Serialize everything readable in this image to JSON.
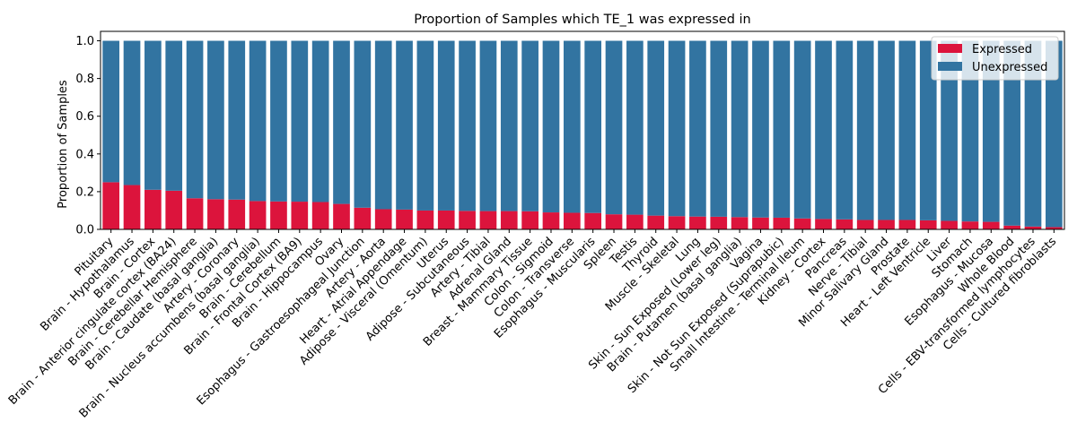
{
  "chart_data": {
    "type": "bar",
    "stacked": true,
    "title": "Proportion of Samples which TE_1 was expressed in",
    "xlabel": "",
    "ylabel": "Proportion of Samples",
    "ylim": [
      0,
      1.05
    ],
    "yticks": [
      "0.0",
      "0.2",
      "0.4",
      "0.6",
      "0.8",
      "1.0"
    ],
    "legend_position": "top-right",
    "categories": [
      "Pituitary",
      "Brain - Hypothalamus",
      "Brain - Cortex",
      "Brain - Anterior cingulate cortex (BA24)",
      "Brain - Cerebellar Hemisphere",
      "Brain - Caudate (basal ganglia)",
      "Artery - Coronary",
      "Brain - Nucleus accumbens (basal ganglia)",
      "Brain - Cerebellum",
      "Brain - Frontal Cortex (BA9)",
      "Brain - Hippocampus",
      "Ovary",
      "Esophagus - Gastroesophageal Junction",
      "Artery - Aorta",
      "Heart - Atrial Appendage",
      "Adipose - Visceral (Omentum)",
      "Uterus",
      "Adipose - Subcutaneous",
      "Artery - Tibial",
      "Adrenal Gland",
      "Breast - Mammary Tissue",
      "Colon - Sigmoid",
      "Colon - Transverse",
      "Esophagus - Muscularis",
      "Spleen",
      "Testis",
      "Thyroid",
      "Muscle - Skeletal",
      "Lung",
      "Skin - Sun Exposed (Lower leg)",
      "Brain - Putamen (basal ganglia)",
      "Vagina",
      "Skin - Not Sun Exposed (Suprapubic)",
      "Small Intestine - Terminal Ileum",
      "Kidney - Cortex",
      "Pancreas",
      "Nerve - Tibial",
      "Minor Salivary Gland",
      "Prostate",
      "Heart - Left Ventricle",
      "Liver",
      "Stomach",
      "Esophagus - Mucosa",
      "Whole Blood",
      "Cells - EBV-transformed lymphocytes",
      "Cells - Cultured fibroblasts"
    ],
    "series": [
      {
        "name": "Expressed",
        "color": "#dc143c",
        "values": [
          0.25,
          0.235,
          0.21,
          0.205,
          0.165,
          0.16,
          0.158,
          0.15,
          0.148,
          0.147,
          0.145,
          0.135,
          0.115,
          0.107,
          0.105,
          0.1,
          0.1,
          0.098,
          0.097,
          0.097,
          0.096,
          0.09,
          0.088,
          0.087,
          0.08,
          0.078,
          0.073,
          0.07,
          0.068,
          0.067,
          0.065,
          0.063,
          0.062,
          0.058,
          0.055,
          0.053,
          0.05,
          0.05,
          0.05,
          0.048,
          0.045,
          0.042,
          0.04,
          0.02,
          0.015,
          0.012
        ]
      },
      {
        "name": "Unexpressed",
        "color": "#3274a1",
        "values": [
          0.75,
          0.765,
          0.79,
          0.795,
          0.835,
          0.84,
          0.842,
          0.85,
          0.852,
          0.853,
          0.855,
          0.865,
          0.885,
          0.893,
          0.895,
          0.9,
          0.9,
          0.902,
          0.903,
          0.903,
          0.904,
          0.91,
          0.912,
          0.913,
          0.92,
          0.922,
          0.927,
          0.93,
          0.932,
          0.933,
          0.935,
          0.937,
          0.938,
          0.942,
          0.945,
          0.947,
          0.95,
          0.95,
          0.95,
          0.952,
          0.955,
          0.958,
          0.96,
          0.98,
          0.985,
          0.988
        ]
      }
    ]
  }
}
